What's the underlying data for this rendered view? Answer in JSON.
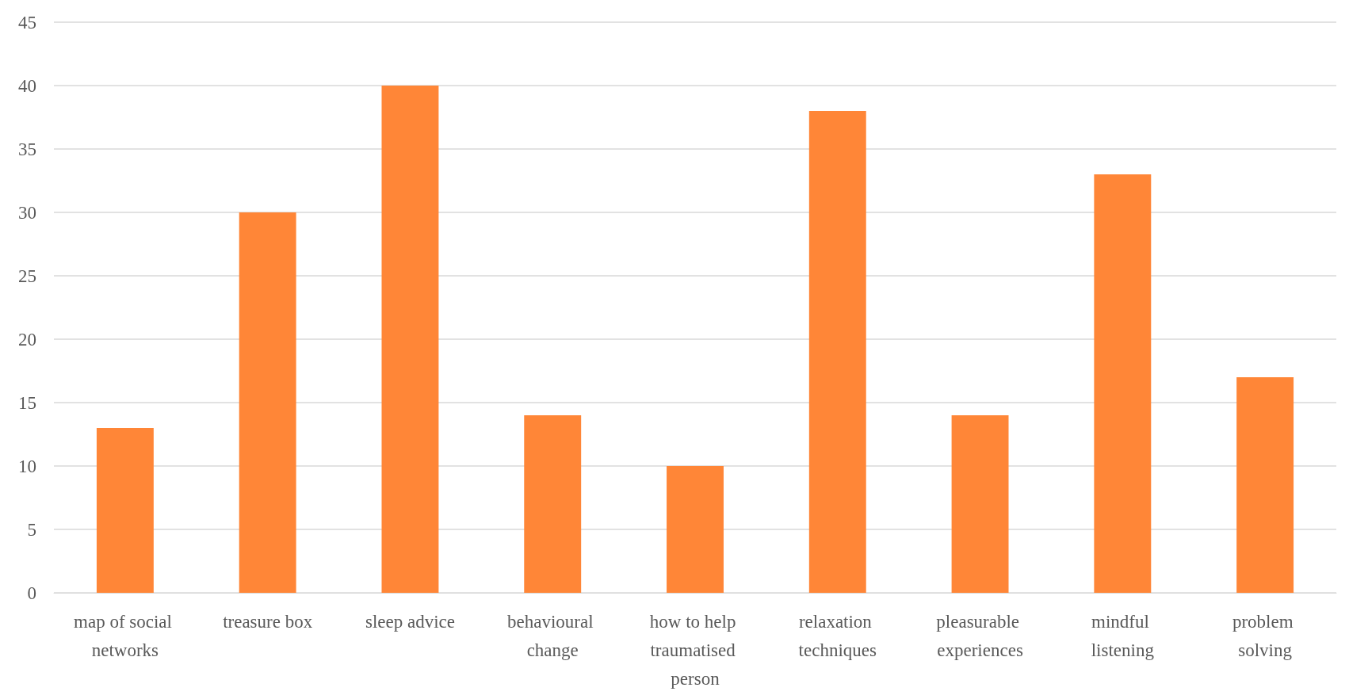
{
  "chart_data": {
    "type": "bar",
    "categories": [
      "map of social networks",
      "treasure box",
      "sleep advice",
      "behavioural change",
      "how to help traumatised person",
      "relaxation techniques",
      "pleasurable experiences",
      "mindful listening",
      "problem solving"
    ],
    "values": [
      13,
      30,
      40,
      14,
      10,
      38,
      14,
      33,
      17
    ],
    "color": "#ff8637",
    "ylim": [
      0,
      45
    ],
    "yticks": [
      0,
      5,
      10,
      15,
      20,
      25,
      30,
      35,
      40,
      45
    ],
    "grid": "y"
  }
}
